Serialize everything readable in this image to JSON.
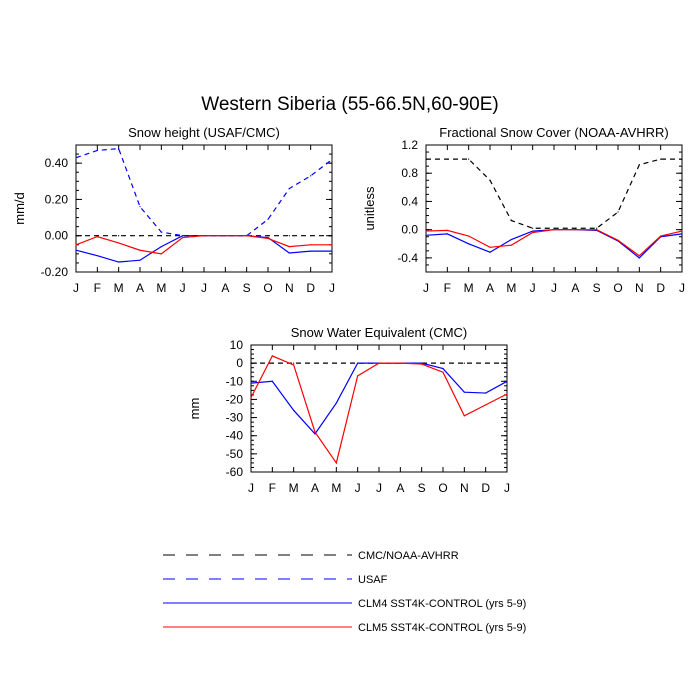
{
  "main_title": "Western Siberia (55-66.5N,60-90E)",
  "months": [
    "J",
    "F",
    "M",
    "A",
    "M",
    "J",
    "J",
    "A",
    "S",
    "O",
    "N",
    "D",
    "J"
  ],
  "colors": {
    "obs": "#000000",
    "usaf": "#0000ff",
    "clm4": "#0000ff",
    "clm5": "#ff0000"
  },
  "chart_data": [
    {
      "type": "line",
      "title": "Snow height (USAF/CMC)",
      "ylabel": "mm/d",
      "ylim": [
        -0.2,
        0.5
      ],
      "yticks": [
        -0.2,
        0.0,
        0.2,
        0.4
      ],
      "ytick_labels": [
        "-0.20",
        "0.00",
        "0.20",
        "0.40"
      ],
      "x": [
        "J",
        "F",
        "M",
        "A",
        "M",
        "J",
        "J",
        "A",
        "S",
        "O",
        "N",
        "D",
        "J"
      ],
      "series": [
        {
          "key": "obs",
          "style": "dashed",
          "values": [
            0,
            0,
            0,
            0,
            0,
            0,
            0,
            0,
            0,
            0,
            0,
            0,
            0
          ]
        },
        {
          "key": "usaf",
          "style": "dashed",
          "values": [
            0.43,
            0.47,
            0.48,
            0.16,
            0.02,
            0.0,
            0.0,
            0.0,
            0.0,
            0.09,
            0.26,
            0.33,
            0.42
          ]
        },
        {
          "key": "clm4",
          "style": "solid",
          "values": [
            -0.08,
            -0.11,
            -0.145,
            -0.135,
            -0.06,
            0.0,
            0.0,
            0.0,
            0.0,
            -0.01,
            -0.095,
            -0.085,
            -0.085
          ]
        },
        {
          "key": "clm5",
          "style": "solid",
          "values": [
            -0.05,
            -0.005,
            -0.04,
            -0.08,
            -0.1,
            -0.01,
            0.0,
            0.0,
            0.0,
            -0.015,
            -0.06,
            -0.05,
            -0.05
          ]
        }
      ]
    },
    {
      "type": "line",
      "title": "Fractional Snow Cover (NOAA-AVHRR)",
      "ylabel": "unitless",
      "ylim": [
        -0.6,
        1.2
      ],
      "yticks": [
        -0.4,
        0.0,
        0.4,
        0.8,
        1.2
      ],
      "ytick_labels": [
        "-0.4",
        "0.0",
        "0.4",
        "0.8",
        "1.2"
      ],
      "x": [
        "J",
        "F",
        "M",
        "A",
        "M",
        "J",
        "J",
        "A",
        "S",
        "O",
        "N",
        "D",
        "J"
      ],
      "series": [
        {
          "key": "obs",
          "style": "dashed",
          "values": [
            1.0,
            1.0,
            1.0,
            0.7,
            0.13,
            0.02,
            0.02,
            0.02,
            0.02,
            0.25,
            0.92,
            1.0,
            1.0
          ]
        },
        {
          "key": "clm4",
          "style": "solid",
          "values": [
            -0.08,
            -0.06,
            -0.2,
            -0.32,
            -0.14,
            -0.02,
            0.0,
            0.0,
            -0.01,
            -0.16,
            -0.4,
            -0.1,
            -0.06
          ]
        },
        {
          "key": "clm5",
          "style": "solid",
          "values": [
            -0.02,
            -0.01,
            -0.09,
            -0.25,
            -0.22,
            -0.04,
            0.0,
            0.0,
            0.0,
            -0.15,
            -0.37,
            -0.09,
            -0.02
          ]
        }
      ]
    },
    {
      "type": "line",
      "title": "Snow Water Equivalent (CMC)",
      "ylabel": "mm",
      "ylim": [
        -60,
        10
      ],
      "yticks": [
        -60,
        -50,
        -40,
        -30,
        -20,
        -10,
        0,
        10
      ],
      "ytick_labels": [
        "-60",
        "-50",
        "-40",
        "-30",
        "-20",
        "-10",
        "0",
        "10"
      ],
      "x": [
        "J",
        "F",
        "M",
        "A",
        "M",
        "J",
        "J",
        "A",
        "S",
        "O",
        "N",
        "D",
        "J"
      ],
      "series": [
        {
          "key": "obs",
          "style": "dashed",
          "values": [
            0,
            0,
            0,
            0,
            0,
            0,
            0,
            0,
            0,
            0,
            0,
            0,
            0
          ]
        },
        {
          "key": "clm4",
          "style": "solid",
          "values": [
            -11,
            -10,
            -26,
            -39,
            -22,
            0,
            0,
            0,
            0,
            -3,
            -16,
            -16.5,
            -10
          ]
        },
        {
          "key": "clm5",
          "style": "solid",
          "values": [
            -19,
            4,
            -1,
            -38,
            -55,
            -7,
            0,
            0,
            -0.5,
            -5,
            -29,
            -23,
            -17
          ]
        }
      ]
    }
  ],
  "legend": [
    {
      "key": "obs",
      "style": "dashed",
      "label": "CMC/NOAA-AVHRR"
    },
    {
      "key": "usaf",
      "style": "dashed",
      "label": "USAF"
    },
    {
      "key": "clm4",
      "style": "solid",
      "label": "CLM4 SST4K-CONTROL (yrs 5-9)"
    },
    {
      "key": "clm5",
      "style": "solid",
      "label": "CLM5 SST4K-CONTROL (yrs 5-9)"
    }
  ]
}
